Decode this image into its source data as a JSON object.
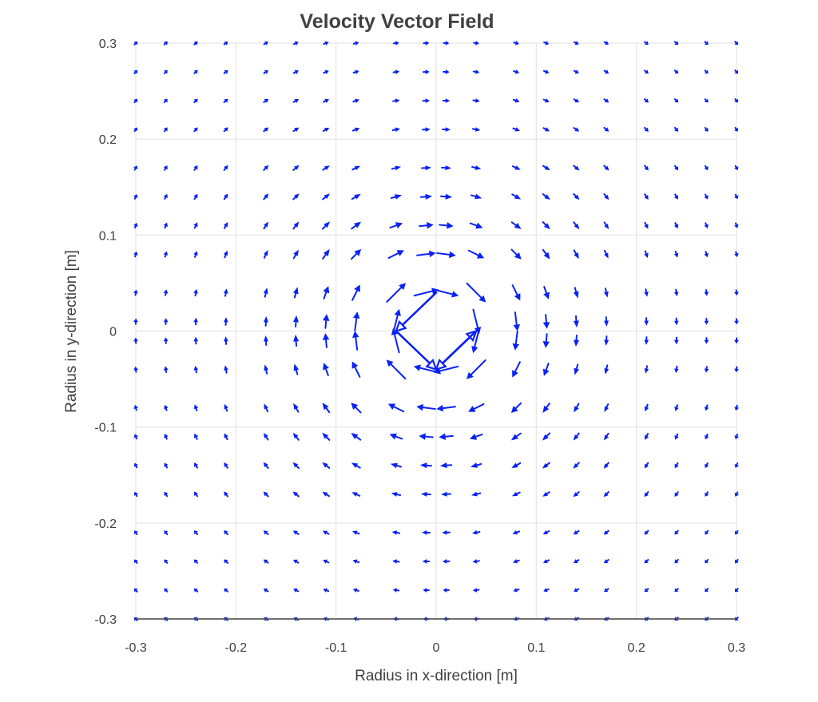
{
  "chart_data": {
    "type": "quiver",
    "title": "Velocity Vector Field",
    "xlabel": "Radius in x-direction [m]",
    "ylabel": "Radius in y-direction [m]",
    "xlim": [
      -0.3,
      0.3
    ],
    "ylim": [
      -0.3,
      0.3
    ],
    "x_ticks": [
      -0.3,
      -0.2,
      -0.1,
      0,
      0.1,
      0.2,
      0.3
    ],
    "y_ticks": [
      -0.3,
      -0.2,
      -0.1,
      0,
      0.1,
      0.2,
      0.3
    ],
    "x_tick_labels": [
      "-0.3",
      "-0.2",
      "-0.1",
      "0",
      "0.1",
      "0.2",
      "0.3"
    ],
    "y_tick_labels": [
      "-0.3",
      "-0.2",
      "-0.1",
      "0",
      "0.1",
      "0.2",
      "0.3"
    ],
    "grid": true,
    "legend": "none",
    "field": {
      "description_of_flow": "clockwise vortex centred at origin",
      "grid_x": [
        -0.3,
        -0.27,
        -0.24,
        -0.21,
        -0.17,
        -0.14,
        -0.11,
        -0.08,
        -0.04,
        -0.01,
        0.01,
        0.04,
        0.08,
        0.11,
        0.14,
        0.17,
        0.21,
        0.24,
        0.27,
        0.3
      ],
      "grid_y": [
        -0.3,
        -0.27,
        -0.24,
        -0.21,
        -0.17,
        -0.14,
        -0.11,
        -0.08,
        -0.04,
        -0.01,
        0.01,
        0.04,
        0.08,
        0.11,
        0.14,
        0.17,
        0.21,
        0.24,
        0.27,
        0.3
      ],
      "core_radius": 0.05,
      "max_speed_at_core": 1.0
    },
    "center_vectors": [
      {
        "x": 0.0,
        "y": -0.04,
        "u": 0.04,
        "v": 0.04
      },
      {
        "x": 0.04,
        "y": 0.0,
        "u": -0.04,
        "v": -0.04
      },
      {
        "x": 0.0,
        "y": 0.04,
        "u": -0.04,
        "v": -0.04
      },
      {
        "x": -0.04,
        "y": 0.0,
        "u": 0.04,
        "v": -0.04
      }
    ],
    "colors": {
      "arrow": "#0a22f5",
      "grid": "#e6e6e6",
      "axis_line": "#444444",
      "text": "#404040"
    }
  }
}
